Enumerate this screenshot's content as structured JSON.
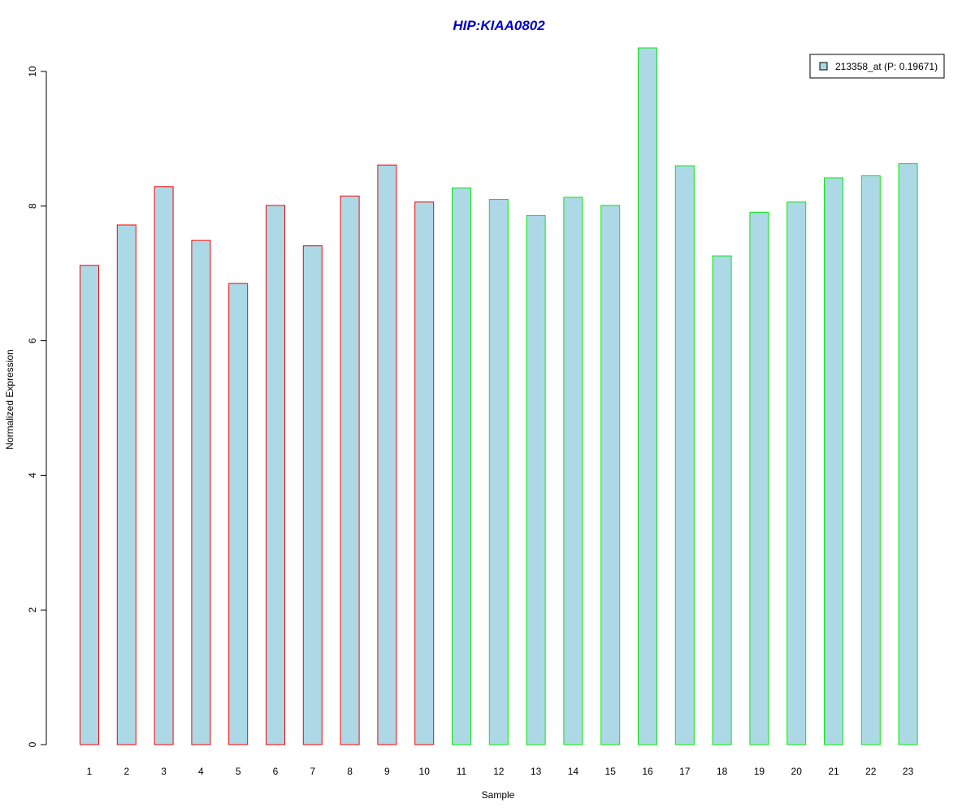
{
  "colors": {
    "title": "#0000cc",
    "bar_fill": "#add8e6",
    "group1_border": "#ff0000",
    "group2_border": "#00ee00",
    "axis": "#000000"
  },
  "chart_data": {
    "type": "bar",
    "title": "HIP:KIAA0802",
    "xlabel": "Sample",
    "ylabel": "Normalized Expression",
    "categories": [
      "1",
      "2",
      "3",
      "4",
      "5",
      "6",
      "7",
      "8",
      "9",
      "10",
      "11",
      "12",
      "13",
      "14",
      "15",
      "16",
      "17",
      "18",
      "19",
      "20",
      "21",
      "22",
      "23"
    ],
    "series": [
      {
        "name": "213358_at (P: 0.19671)",
        "values": [
          7.12,
          7.72,
          8.29,
          7.49,
          6.85,
          8.01,
          7.41,
          8.15,
          8.61,
          8.06,
          8.27,
          8.1,
          7.86,
          8.13,
          8.01,
          10.35,
          8.6,
          7.26,
          7.91,
          8.06,
          8.42,
          8.45,
          8.63
        ]
      }
    ],
    "groups": [
      1,
      1,
      1,
      1,
      1,
      1,
      1,
      1,
      1,
      1,
      2,
      2,
      2,
      2,
      2,
      2,
      2,
      2,
      2,
      2,
      2,
      2,
      2
    ],
    "yticks": [
      0,
      2,
      4,
      6,
      8,
      10
    ],
    "ylim": [
      0,
      10.35
    ],
    "grid": false,
    "legend_position": "top-right"
  }
}
